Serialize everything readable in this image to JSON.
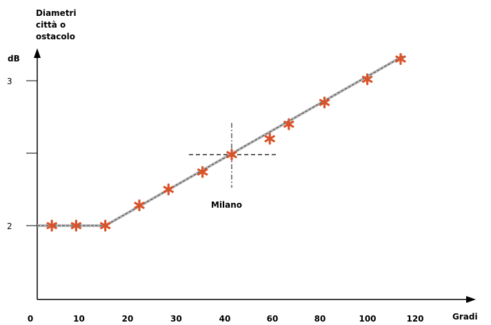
{
  "chart_data": {
    "type": "scatter",
    "title_lines": [
      "Diametri",
      "città o",
      "ostacolo"
    ],
    "ylabel": "dB",
    "xlabel": "Gradi",
    "y_ticks": [
      {
        "value": 3,
        "label": "3"
      },
      {
        "value": 2.5,
        "label": ""
      },
      {
        "value": 2,
        "label": "2"
      }
    ],
    "x_tick_labels": [
      "0",
      "10",
      "20",
      "30",
      "40",
      "60",
      "80",
      "100",
      "120"
    ],
    "ylim": [
      1.1,
      3.5
    ],
    "points": [
      {
        "x": 3,
        "y": 2.0
      },
      {
        "x": 8,
        "y": 2.0
      },
      {
        "x": 14,
        "y": 2.0
      },
      {
        "x": 21,
        "y": 2.14
      },
      {
        "x": 27,
        "y": 2.25
      },
      {
        "x": 34,
        "y": 2.37
      },
      {
        "x": 40,
        "y": 2.49
      },
      {
        "x": 56,
        "y": 2.6
      },
      {
        "x": 64,
        "y": 2.7
      },
      {
        "x": 79,
        "y": 2.85
      },
      {
        "x": 97,
        "y": 3.01
      },
      {
        "x": 111,
        "y": 3.15
      }
    ],
    "trend": [
      {
        "x": 0,
        "y": 2.0
      },
      {
        "x": 14,
        "y": 2.0
      },
      {
        "x": 112,
        "y": 3.17
      }
    ],
    "annotation": {
      "label": "Milano",
      "x": 40,
      "y": 2.49
    },
    "colors": {
      "marker": "#d9532a",
      "axis": "#000000",
      "trend": "#888888"
    }
  }
}
